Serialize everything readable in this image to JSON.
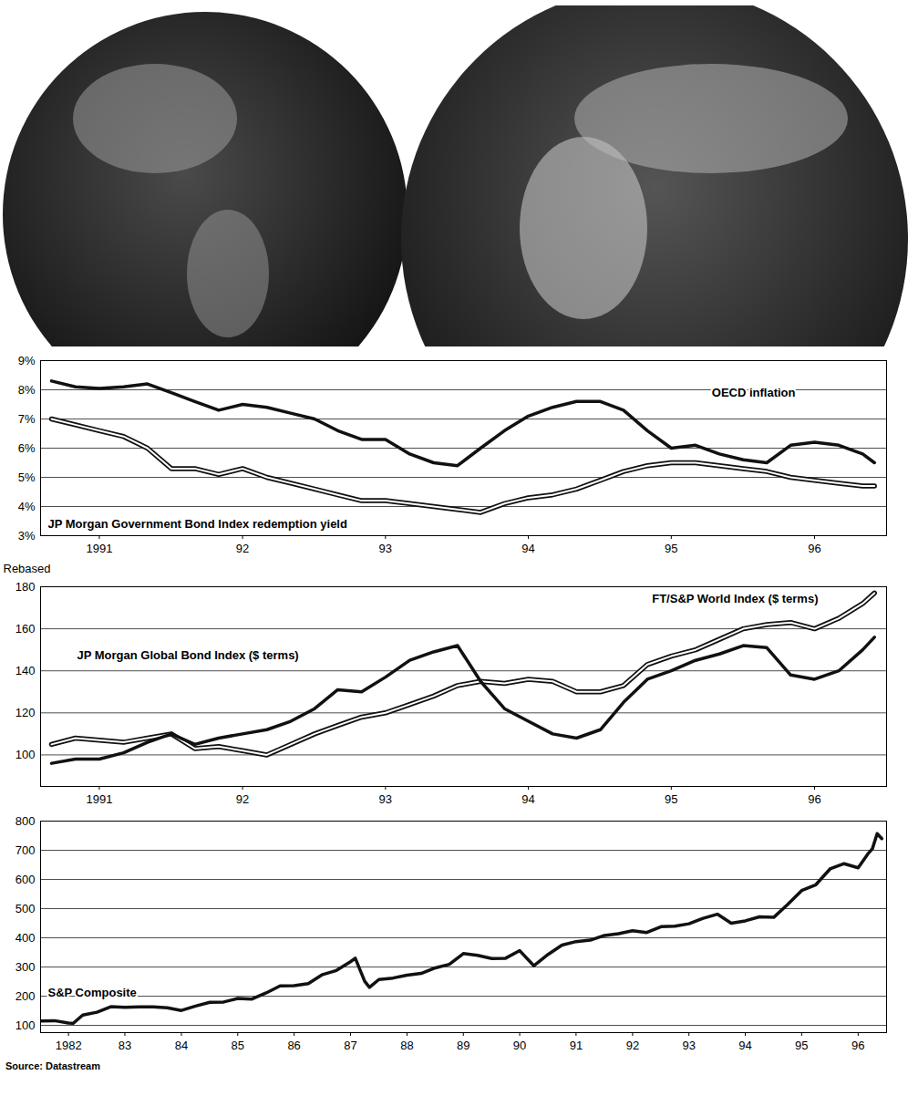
{
  "source": "Source: Datastream",
  "chart_data": [
    {
      "type": "line",
      "x": [
        "1991-03",
        "1991-05",
        "1991-07",
        "1991-09",
        "1991-11",
        "1992-01",
        "1992-03",
        "1992-05",
        "1992-07",
        "1992-09",
        "1992-11",
        "1993-01",
        "1993-03",
        "1993-05",
        "1993-07",
        "1993-09",
        "1993-11",
        "1994-01",
        "1994-03",
        "1994-05",
        "1994-07",
        "1994-09",
        "1994-11",
        "1995-01",
        "1995-03",
        "1995-05",
        "1995-07",
        "1995-09",
        "1995-11",
        "1996-01",
        "1996-03",
        "1996-05",
        "1996-07",
        "1996-09",
        "1996-11",
        "1996-12"
      ],
      "xlim": [
        "1991-02",
        "1997-01"
      ],
      "xticks": [
        {
          "value": "1991-07",
          "label": "1991"
        },
        {
          "value": "1992-07",
          "label": "92"
        },
        {
          "value": "1993-07",
          "label": "93"
        },
        {
          "value": "1994-07",
          "label": "94"
        },
        {
          "value": "1995-07",
          "label": "95"
        },
        {
          "value": "1996-07",
          "label": "96"
        }
      ],
      "ylim": [
        3,
        9
      ],
      "yticks": [
        {
          "value": 3,
          "label": "3%"
        },
        {
          "value": 4,
          "label": "4%"
        },
        {
          "value": 5,
          "label": "5%"
        },
        {
          "value": 6,
          "label": "6%"
        },
        {
          "value": 7,
          "label": "7%"
        },
        {
          "value": 8,
          "label": "8%"
        },
        {
          "value": 9,
          "label": "9%"
        }
      ],
      "grid": true,
      "series": [
        {
          "name": "OECD inflation",
          "color": "#111111",
          "line_style": "solid",
          "values": [
            8.3,
            8.1,
            8.05,
            8.1,
            8.2,
            7.9,
            7.6,
            7.3,
            7.5,
            7.4,
            7.2,
            7.0,
            6.6,
            6.3,
            6.3,
            5.8,
            5.5,
            5.4,
            6.0,
            6.6,
            7.1,
            7.4,
            7.6,
            7.6,
            7.3,
            6.6,
            6.0,
            6.1,
            5.8,
            5.6,
            5.5,
            6.1,
            6.2,
            6.1,
            5.8,
            5.5
          ]
        },
        {
          "name": "JP Morgan Government Bond Index redemption yield",
          "color": "#111111",
          "line_style": "double",
          "values": [
            7.0,
            6.8,
            6.6,
            6.4,
            6.0,
            5.3,
            5.3,
            5.1,
            5.3,
            5.0,
            4.8,
            4.6,
            4.4,
            4.2,
            4.2,
            4.1,
            4.0,
            3.9,
            3.8,
            4.1,
            4.3,
            4.4,
            4.6,
            4.9,
            5.2,
            5.4,
            5.5,
            5.5,
            5.4,
            5.3,
            5.2,
            5.0,
            4.9,
            4.8,
            4.7,
            4.7
          ]
        }
      ]
    },
    {
      "type": "line",
      "ylabel": "Rebased",
      "x": [
        "1991-03",
        "1991-05",
        "1991-07",
        "1991-09",
        "1991-11",
        "1992-01",
        "1992-03",
        "1992-05",
        "1992-07",
        "1992-09",
        "1992-11",
        "1993-01",
        "1993-03",
        "1993-05",
        "1993-07",
        "1993-09",
        "1993-11",
        "1994-01",
        "1994-03",
        "1994-05",
        "1994-07",
        "1994-09",
        "1994-11",
        "1995-01",
        "1995-03",
        "1995-05",
        "1995-07",
        "1995-09",
        "1995-11",
        "1996-01",
        "1996-03",
        "1996-05",
        "1996-07",
        "1996-09",
        "1996-11",
        "1996-12"
      ],
      "xlim": [
        "1991-02",
        "1997-01"
      ],
      "xticks": [
        {
          "value": "1991-07",
          "label": "1991"
        },
        {
          "value": "1992-07",
          "label": "92"
        },
        {
          "value": "1993-07",
          "label": "93"
        },
        {
          "value": "1994-07",
          "label": "94"
        },
        {
          "value": "1995-07",
          "label": "95"
        },
        {
          "value": "1996-07",
          "label": "96"
        }
      ],
      "ylim": [
        85,
        180
      ],
      "yticks": [
        100,
        120,
        140,
        160,
        180
      ],
      "grid": true,
      "series": [
        {
          "name": "FT/S&P World Index ($ terms)",
          "color": "#111111",
          "line_style": "double",
          "values": [
            105,
            108,
            107,
            106,
            108,
            110,
            103,
            104,
            102,
            100,
            105,
            110,
            114,
            118,
            120,
            124,
            128,
            133,
            135,
            134,
            136,
            135,
            130,
            130,
            133,
            143,
            147,
            150,
            155,
            160,
            162,
            163,
            160,
            165,
            172,
            177
          ]
        },
        {
          "name": "JP Morgan Global Bond Index ($ terms)",
          "color": "#111111",
          "line_style": "solid",
          "values": [
            96,
            98,
            98,
            101,
            106,
            110,
            105,
            108,
            110,
            112,
            116,
            122,
            131,
            130,
            137,
            145,
            149,
            152,
            135,
            122,
            116,
            110,
            108,
            112,
            125,
            136,
            140,
            145,
            148,
            152,
            151,
            138,
            136,
            140,
            150,
            156
          ]
        }
      ]
    },
    {
      "type": "line",
      "x": [
        "1982-01",
        "1982-04",
        "1982-07",
        "1982-08",
        "1982-10",
        "1983-01",
        "1983-04",
        "1983-07",
        "1983-10",
        "1984-01",
        "1984-04",
        "1984-07",
        "1984-10",
        "1985-01",
        "1985-04",
        "1985-07",
        "1985-10",
        "1986-01",
        "1986-04",
        "1986-07",
        "1986-10",
        "1987-01",
        "1987-04",
        "1987-07",
        "1987-08",
        "1987-10",
        "1987-11",
        "1988-01",
        "1988-04",
        "1988-07",
        "1988-10",
        "1989-01",
        "1989-04",
        "1989-07",
        "1989-10",
        "1990-01",
        "1990-04",
        "1990-07",
        "1990-10",
        "1991-01",
        "1991-04",
        "1991-07",
        "1991-10",
        "1992-01",
        "1992-04",
        "1992-07",
        "1992-10",
        "1993-01",
        "1993-04",
        "1993-07",
        "1993-10",
        "1994-01",
        "1994-04",
        "1994-07",
        "1994-10",
        "1995-01",
        "1995-04",
        "1995-07",
        "1995-10",
        "1996-01",
        "1996-04",
        "1996-07",
        "1996-09",
        "1996-10",
        "1996-11",
        "1996-12"
      ],
      "xlim": [
        "1982-01",
        "1997-01"
      ],
      "xticks": [
        {
          "value": "1982-07",
          "label": "1982"
        },
        {
          "value": "1983-07",
          "label": "83"
        },
        {
          "value": "1984-07",
          "label": "84"
        },
        {
          "value": "1985-07",
          "label": "85"
        },
        {
          "value": "1986-07",
          "label": "86"
        },
        {
          "value": "1987-07",
          "label": "87"
        },
        {
          "value": "1988-07",
          "label": "88"
        },
        {
          "value": "1989-07",
          "label": "89"
        },
        {
          "value": "1990-07",
          "label": "90"
        },
        {
          "value": "1991-07",
          "label": "91"
        },
        {
          "value": "1992-07",
          "label": "92"
        },
        {
          "value": "1993-07",
          "label": "93"
        },
        {
          "value": "1994-07",
          "label": "94"
        },
        {
          "value": "1995-07",
          "label": "95"
        },
        {
          "value": "1996-07",
          "label": "96"
        }
      ],
      "ylim": [
        75,
        800
      ],
      "yticks": [
        100,
        200,
        300,
        400,
        500,
        600,
        700,
        800
      ],
      "grid": true,
      "series": [
        {
          "name": "S&P Composite",
          "color": "#111111",
          "line_style": "solid",
          "values": [
            115,
            116,
            108,
            107,
            135,
            145,
            164,
            162,
            163,
            163,
            160,
            151,
            166,
            179,
            180,
            192,
            190,
            211,
            235,
            236,
            243,
            274,
            288,
            318,
            330,
            251,
            230,
            257,
            262,
            272,
            278,
            297,
            309,
            346,
            340,
            329,
            330,
            356,
            304,
            343,
            375,
            387,
            392,
            408,
            414,
            424,
            418,
            438,
            440,
            448,
            467,
            481,
            450,
            458,
            472,
            470,
            514,
            562,
            582,
            636,
            654,
            640,
            687,
            705,
            757,
            740
          ]
        }
      ]
    }
  ]
}
